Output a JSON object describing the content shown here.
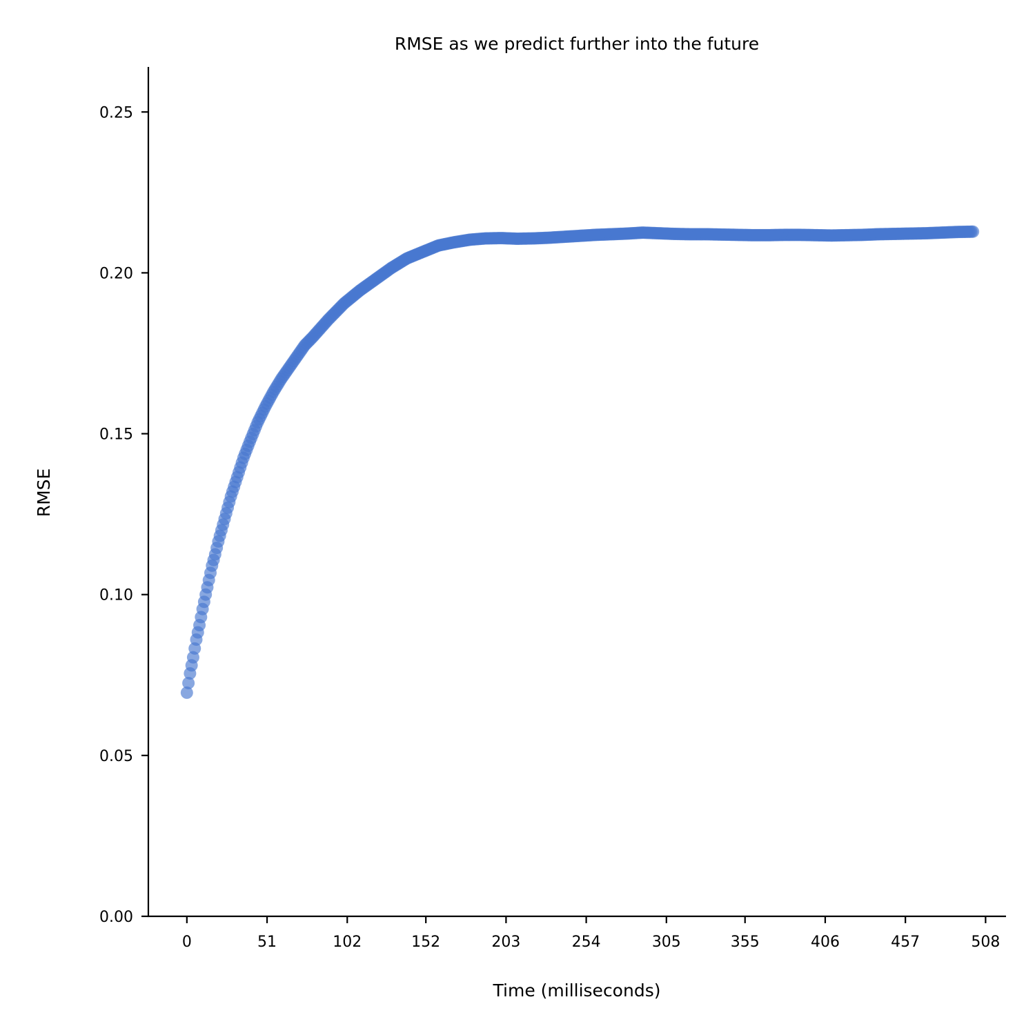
{
  "chart_data": {
    "type": "scatter",
    "title": "RMSE as we predict further into the future",
    "xlabel": "Time (milliseconds)",
    "ylabel": "RMSE",
    "xlim": [
      -24.5,
      521
    ],
    "ylim": [
      0,
      0.264
    ],
    "x_ticks": [
      0,
      51,
      102,
      152,
      203,
      254,
      305,
      355,
      406,
      457,
      508
    ],
    "x_tick_labels": [
      "0",
      "51",
      "102",
      "152",
      "203",
      "254",
      "305",
      "355",
      "406",
      "457",
      "508"
    ],
    "y_ticks": [
      0,
      0.05,
      0.1,
      0.15,
      0.2,
      0.25
    ],
    "y_tick_labels": [
      "0.00",
      "0.05",
      "0.10",
      "0.15",
      "0.20",
      "0.25"
    ],
    "grid": false,
    "point_color": "#4878cf",
    "point_alpha": 0.65,
    "series": [
      {
        "x": [
          0,
          2,
          4,
          6,
          8,
          10,
          12,
          14,
          16,
          18,
          20,
          22,
          24,
          26,
          28,
          30,
          32,
          34,
          36,
          38,
          40,
          45,
          50,
          55,
          60,
          65,
          70,
          75,
          80,
          90,
          100,
          110,
          120,
          130,
          140,
          150,
          160,
          170,
          180,
          190,
          200,
          210,
          220,
          230,
          240,
          250,
          260,
          270,
          280,
          290,
          300,
          310,
          320,
          330,
          340,
          350,
          360,
          370,
          380,
          390,
          400,
          410,
          420,
          430,
          440,
          450,
          460,
          470,
          480,
          490,
          500
        ],
        "y": [
          0.0695,
          0.0755,
          0.0805,
          0.086,
          0.0905,
          0.0955,
          0.1,
          0.1045,
          0.109,
          0.1125,
          0.1165,
          0.12,
          0.1235,
          0.127,
          0.1305,
          0.1335,
          0.1365,
          0.1395,
          0.1425,
          0.145,
          0.1475,
          0.1535,
          0.1585,
          0.163,
          0.167,
          0.1705,
          0.174,
          0.1775,
          0.18,
          0.1855,
          0.1905,
          0.1945,
          0.198,
          0.2015,
          0.2045,
          0.2065,
          0.2085,
          0.2095,
          0.2103,
          0.2107,
          0.2108,
          0.2106,
          0.2107,
          0.2109,
          0.2112,
          0.2115,
          0.2118,
          0.212,
          0.2122,
          0.2125,
          0.2123,
          0.2121,
          0.212,
          0.212,
          0.2119,
          0.2118,
          0.2117,
          0.2117,
          0.2118,
          0.2118,
          0.2117,
          0.2116,
          0.2117,
          0.2118,
          0.212,
          0.2121,
          0.2122,
          0.2123,
          0.2125,
          0.2127,
          0.2128
        ]
      }
    ]
  }
}
